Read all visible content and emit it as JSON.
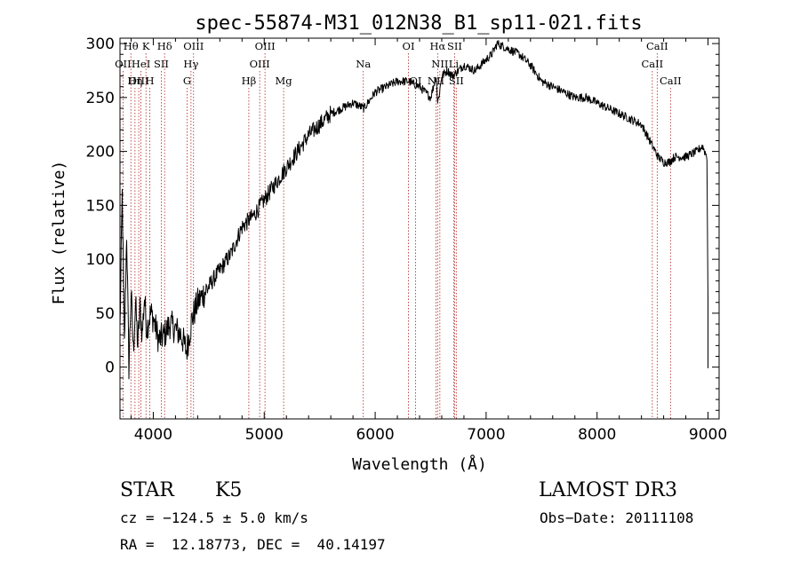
{
  "chart_data": {
    "type": "line",
    "title": "spec-55874-M31_012N38_B1_sp11-021.fits",
    "xlabel": "Wavelength (Å)",
    "ylabel": "Flux (relative)",
    "xlim": [
      3700,
      9100
    ],
    "ylim": [
      -48,
      305
    ],
    "xticks": [
      4000,
      5000,
      6000,
      7000,
      8000,
      9000
    ],
    "yticks": [
      0,
      50,
      100,
      150,
      200,
      250,
      300
    ],
    "series": [
      {
        "name": "flux",
        "x": [
          3700,
          3720,
          3740,
          3760,
          3780,
          3800,
          3820,
          3840,
          3860,
          3880,
          3900,
          3920,
          3940,
          3960,
          3980,
          4000,
          4050,
          4100,
          4150,
          4200,
          4250,
          4300,
          4350,
          4400,
          4500,
          4600,
          4700,
          4800,
          4900,
          5000,
          5100,
          5200,
          5300,
          5400,
          5500,
          5600,
          5700,
          5800,
          5900,
          6000,
          6100,
          6200,
          6300,
          6400,
          6500,
          6550,
          6563,
          6580,
          6600,
          6650,
          6700,
          6750,
          6800,
          6900,
          7000,
          7050,
          7100,
          7200,
          7300,
          7400,
          7500,
          7600,
          7700,
          7800,
          7900,
          8000,
          8100,
          8200,
          8300,
          8400,
          8450,
          8500,
          8550,
          8600,
          8650,
          8700,
          8800,
          8900,
          8950,
          8990,
          9000
        ],
        "values": [
          35,
          160,
          20,
          125,
          0,
          70,
          15,
          60,
          20,
          55,
          30,
          65,
          35,
          45,
          50,
          45,
          25,
          30,
          40,
          35,
          30,
          15,
          45,
          60,
          75,
          90,
          105,
          130,
          140,
          155,
          170,
          185,
          200,
          215,
          225,
          235,
          240,
          245,
          240,
          255,
          260,
          265,
          265,
          260,
          250,
          270,
          245,
          255,
          270,
          275,
          270,
          275,
          280,
          275,
          285,
          290,
          300,
          295,
          290,
          280,
          265,
          260,
          255,
          250,
          250,
          245,
          240,
          235,
          230,
          225,
          215,
          205,
          195,
          190,
          190,
          195,
          195,
          200,
          205,
          195,
          60
        ]
      }
    ],
    "lines": [
      {
        "name": "Hθ",
        "x": 3798,
        "row": 1
      },
      {
        "name": "OII",
        "x": 3727,
        "row": 2
      },
      {
        "name": "OIII",
        "x": 3869,
        "row": 3
      },
      {
        "name": "K",
        "x": 3934,
        "row": 1
      },
      {
        "name": "HeI",
        "x": 3889,
        "row": 2
      },
      {
        "name": "Hη",
        "x": 3835,
        "row": 3
      },
      {
        "name": "H",
        "x": 3969,
        "row": 3
      },
      {
        "name": "Hδ",
        "x": 4102,
        "row": 1
      },
      {
        "name": "SII",
        "x": 4072,
        "row": 2
      },
      {
        "name": "OIII",
        "x": 4363,
        "row": 1
      },
      {
        "name": "Hγ",
        "x": 4340,
        "row": 2
      },
      {
        "name": "G",
        "x": 4305,
        "row": 3
      },
      {
        "name": "Hβ",
        "x": 4861,
        "row": 3
      },
      {
        "name": "OIII",
        "x": 5007,
        "row": 1
      },
      {
        "name": "OIII",
        "x": 4959,
        "row": 2
      },
      {
        "name": "Mg",
        "x": 5175,
        "row": 3
      },
      {
        "name": "Na",
        "x": 5893,
        "row": 2
      },
      {
        "name": "OI",
        "x": 6300,
        "row": 1
      },
      {
        "name": "OI",
        "x": 6364,
        "row": 3
      },
      {
        "name": "Hα",
        "x": 6563,
        "row": 1
      },
      {
        "name": "NII",
        "x": 6583,
        "row": 2
      },
      {
        "name": "NII",
        "x": 6548,
        "row": 3
      },
      {
        "name": "SII",
        "x": 6716,
        "row": 1
      },
      {
        "name": "Li",
        "x": 6708,
        "row": 2
      },
      {
        "name": "SII",
        "x": 6731,
        "row": 3
      },
      {
        "name": "CaII",
        "x": 8542,
        "row": 1
      },
      {
        "name": "CaII",
        "x": 8498,
        "row": 2
      },
      {
        "name": "CaII",
        "x": 8662,
        "row": 3
      }
    ]
  },
  "info": {
    "class": "STAR",
    "subclass": "K5",
    "survey": "LAMOST DR3",
    "cz": "cz = −124.5 ± 5.0 km/s",
    "obsdate": "Obs−Date: 20111108",
    "coords": "RA =  12.18773, DEC =  40.14197"
  }
}
